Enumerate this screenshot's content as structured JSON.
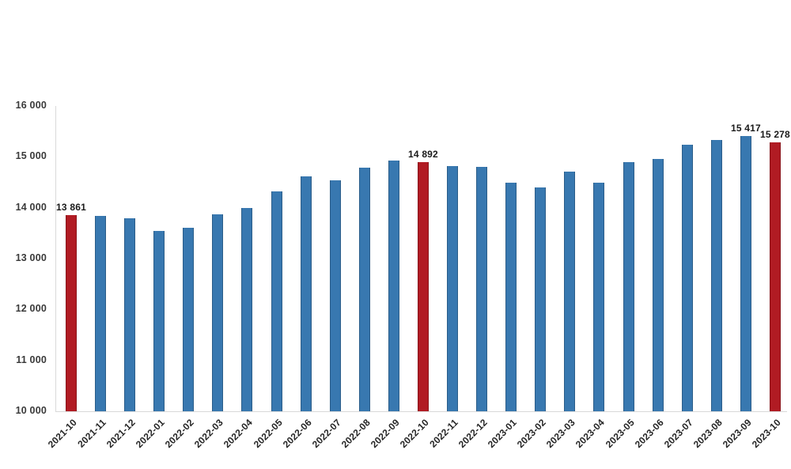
{
  "chart_data": {
    "type": "bar",
    "title": "",
    "xlabel": "",
    "ylabel": "",
    "grid": false,
    "legend": null,
    "ylim": [
      10000,
      16000
    ],
    "categories": [
      "2021-10",
      "2021-11",
      "2021-12",
      "2022-01",
      "2022-02",
      "2022-03",
      "2022-04",
      "2022-05",
      "2022-06",
      "2022-07",
      "2022-08",
      "2022-09",
      "2022-10",
      "2022-11",
      "2022-12",
      "2023-01",
      "2023-02",
      "2023-03",
      "2023-04",
      "2023-05",
      "2023-06",
      "2023-07",
      "2023-08",
      "2023-09",
      "2023-10"
    ],
    "values": [
      13861,
      13846,
      13800,
      13551,
      13611,
      13866,
      14000,
      14321,
      14612,
      14536,
      14787,
      14931,
      14892,
      14824,
      14805,
      14496,
      14401,
      14707,
      14491,
      14902,
      14956,
      15238,
      15334,
      15417,
      15278
    ],
    "highlight_indices": [
      0,
      12,
      24
    ],
    "point_labels": [
      {
        "index": 0,
        "text": "13 861"
      },
      {
        "index": 12,
        "text": "14 892"
      },
      {
        "index": 23,
        "text": "15 417"
      },
      {
        "index": 24,
        "text": "15 278"
      }
    ],
    "yticks": [
      {
        "value": 10000,
        "label": "10 000"
      },
      {
        "value": 11000,
        "label": "11 000"
      },
      {
        "value": 12000,
        "label": "12 000"
      },
      {
        "value": 13000,
        "label": "13 000"
      },
      {
        "value": 14000,
        "label": "14 000"
      },
      {
        "value": 15000,
        "label": "15 000"
      },
      {
        "value": 16000,
        "label": "16 000"
      }
    ],
    "colors": {
      "bar": "#3878b0",
      "highlight": "#b11b23",
      "axis_line": "#d9d9d9",
      "tick_text": "#3a3a3a",
      "label_text": "#1a1a1a"
    }
  }
}
